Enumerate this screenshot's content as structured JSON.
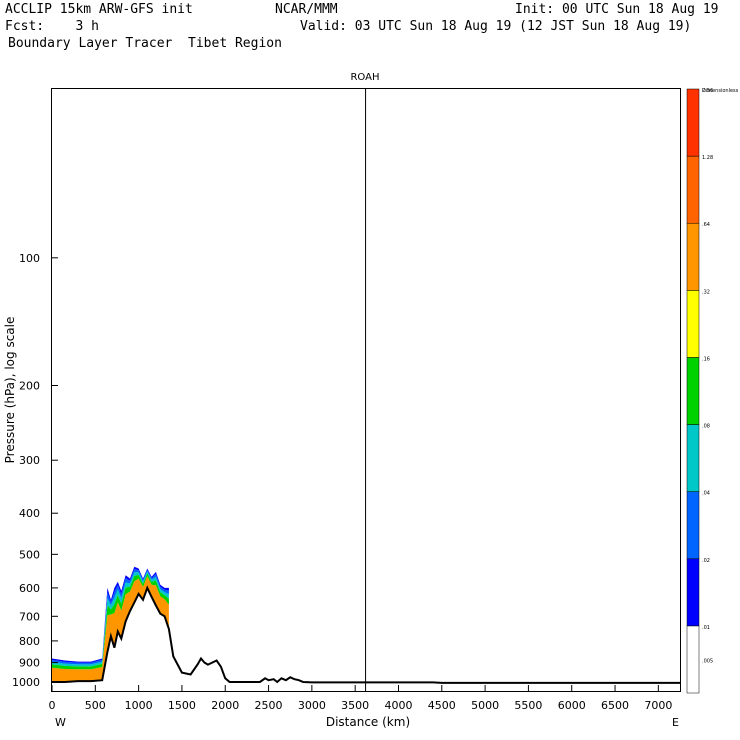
{
  "header": {
    "line1_left": "ACCLIP 15km ARW-GFS init",
    "line1_mid": "NCAR/MMM",
    "line1_right": "Init: 00 UTC Sun 18 Aug 19",
    "line2_left": "Fcst:    3 h",
    "line2_right": "Valid: 03 UTC Sun 18 Aug 19 (12 JST Sun 18 Aug 19)",
    "line3": "Boundary Layer Tracer  Tibet Region"
  },
  "chart_data": {
    "type": "area",
    "title": "ROAH",
    "xlabel": "Distance (km)",
    "ylabel": "Pressure (hPa), log scale",
    "x_end_labels": {
      "left": "W",
      "right": "E"
    },
    "xlim": [
      0,
      7250
    ],
    "ylim": [
      1050,
      40
    ],
    "y_scale": "log",
    "x_ticks": [
      0,
      500,
      1000,
      1500,
      2000,
      2500,
      3000,
      3500,
      4000,
      4500,
      5000,
      5500,
      6000,
      6500,
      7000
    ],
    "y_ticks": [
      100,
      200,
      300,
      400,
      500,
      600,
      700,
      800,
      900,
      1000
    ],
    "marker_line_x": 3620,
    "colorbar": {
      "labels": [
        ".005",
        ".01",
        ".02",
        ".04",
        ".08",
        ".16",
        ".32",
        ".64",
        "1.28",
        "2.56",
        "Dimensionless"
      ],
      "colors": [
        "#ffffff",
        "#0000ff",
        "#0064ff",
        "#00c8c8",
        "#00d200",
        "#ffff00",
        "#ff9600",
        "#ff6400",
        "#ff3200"
      ]
    },
    "terrain_surface_hPa": {
      "x": [
        0,
        150,
        300,
        450,
        580,
        640,
        680,
        720,
        760,
        800,
        850,
        900,
        950,
        1000,
        1050,
        1100,
        1150,
        1200,
        1250,
        1300,
        1350,
        1400,
        1500,
        1600,
        1680,
        1720,
        1760,
        1800,
        1850,
        1900,
        1950,
        2000,
        2050,
        2100,
        2200,
        2400,
        2460,
        2500,
        2560,
        2600,
        2650,
        2700,
        2750,
        2800,
        2850,
        2900,
        3000,
        3500,
        4000,
        4400,
        4500,
        5000,
        6000,
        7000,
        7250
      ],
      "y": [
        1000,
        1000,
        995,
        995,
        990,
        850,
        780,
        830,
        760,
        790,
        720,
        680,
        650,
        620,
        640,
        600,
        630,
        660,
        690,
        700,
        750,
        870,
        950,
        960,
        910,
        880,
        900,
        910,
        900,
        890,
        920,
        980,
        1000,
        1000,
        1000,
        1000,
        980,
        990,
        985,
        1000,
        980,
        990,
        975,
        985,
        990,
        1000,
        1002,
        1002,
        1002,
        1002,
        1005,
        1005,
        1005,
        1005,
        1005
      ]
    },
    "tracer_top_hPa": {
      "x": [
        0,
        150,
        300,
        450,
        580,
        640,
        680,
        720,
        760,
        800,
        850,
        900,
        950,
        1000,
        1050,
        1100,
        1150,
        1200,
        1250,
        1300,
        1350
      ],
      "y": [
        880,
        890,
        895,
        895,
        880,
        600,
        640,
        600,
        580,
        610,
        560,
        570,
        535,
        540,
        570,
        540,
        565,
        550,
        590,
        600,
        600
      ]
    },
    "tracer_layers": [
      {
        "name": ".32-.64",
        "color": "#ff9600",
        "depth": [
          0.22,
          0.32,
          0.44,
          0.6,
          1.0
        ]
      },
      {
        "name": ".16-.32",
        "color": "#00d200",
        "depth": [
          0.08,
          0.12,
          0.16,
          0.2
        ]
      },
      {
        "name": ".08-.16",
        "color": "#00c8c8",
        "depth": [
          0.04,
          0.06,
          0.08,
          0.1
        ]
      },
      {
        "name": ".04-.08",
        "color": "#0064ff",
        "depth": [
          0.03,
          0.05,
          0.06,
          0.07
        ]
      },
      {
        "name": ".02-.04",
        "color": "#0000ff",
        "depth": [
          0.02,
          0.03,
          0.04,
          0.05
        ]
      }
    ]
  }
}
